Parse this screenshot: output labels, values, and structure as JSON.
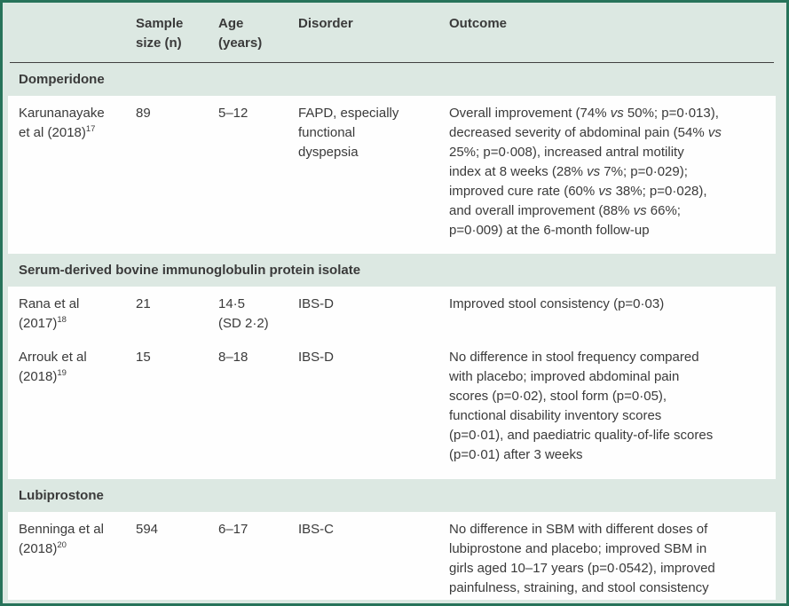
{
  "colors": {
    "border": "#27735a",
    "background": "#dce8e2",
    "row_bg": "#fefefe",
    "text": "#3a3a3a",
    "rule": "#404040"
  },
  "table": {
    "header": {
      "study": "",
      "sample_size": "Sample\nsize (n)",
      "age": "Age\n(years)",
      "disorder": "Disorder",
      "outcome": "Outcome"
    },
    "sections": [
      {
        "title": "Domperidone",
        "rows": [
          {
            "study": "Karunanayake\net al (2018)",
            "ref": "17",
            "sample_size": "89",
            "age": "5–12",
            "disorder": "FAPD, especially\nfunctional\ndyspepsia",
            "outcome": "Overall improvement (74% *vs* 50%; p=0·013),\ndecreased severity of abdominal pain (54% *vs*\n25%; p=0·008), increased antral motility\nindex at 8 weeks (28% *vs* 7%; p=0·029);\nimproved cure rate (60% *vs* 38%; p=0·028),\nand overall improvement (88% *vs* 66%;\np=0·009) at the 6-month follow-up"
          }
        ]
      },
      {
        "title": "Serum-derived bovine immunoglobulin protein isolate",
        "rows": [
          {
            "study": "Rana et al\n(2017)",
            "ref": "18",
            "sample_size": "21",
            "age": "14·5\n(SD 2·2)",
            "disorder": "IBS-D",
            "outcome": "Improved stool consistency (p=0·03)"
          },
          {
            "study": "Arrouk et al\n(2018)",
            "ref": "19",
            "sample_size": "15",
            "age": "8–18",
            "disorder": "IBS-D",
            "outcome": "No difference in stool frequency compared\nwith placebo; improved abdominal pain\nscores (p=0·02), stool form (p=0·05),\nfunctional disability inventory scores\n(p=0·01), and paediatric quality-of-life scores\n(p=0·01) after 3 weeks"
          }
        ]
      },
      {
        "title": "Lubiprostone",
        "rows": [
          {
            "study": "Benninga et al\n(2018)",
            "ref": "20",
            "sample_size": "594",
            "age": "6–17",
            "disorder": "IBS-C",
            "outcome": "No difference in SBM with different doses of\nlubiprostone and placebo; improved SBM in\ngirls aged 10–17 years (p=0·0542), improved\npainfulness, straining, and stool consistency"
          }
        ]
      }
    ]
  }
}
